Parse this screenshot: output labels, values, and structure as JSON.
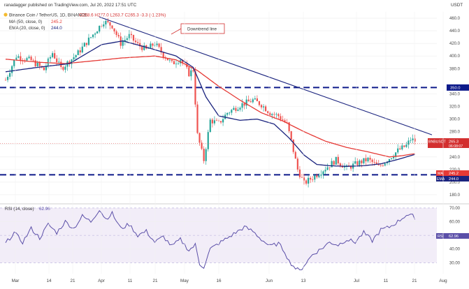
{
  "header": {
    "published": "ranadagger published on TradingView.com, Jul 20, 2022 17:51 UTC",
    "symbol": "Binance Coin / TetherUS, 1D, BINANCE",
    "ohlc": "O268.6  H277.0  L263.7  C265.3  -3.3 (-1.23%)",
    "ma_label": "MA (50, close, 0)",
    "ma_value": "245.2",
    "ema_label": "EMA (20, close, 0)",
    "ema_value": "244.0",
    "rsi_label": "RSI (14, close)",
    "rsi_value": "62.96"
  },
  "annotation": "Downtrend line",
  "colors": {
    "up": "#26a69a",
    "down": "#ef5350",
    "ma": "#e53935",
    "ema": "#1a237e",
    "trend": "#1a237e",
    "rsi": "#5b4fa8",
    "level": "#0d1a8a"
  },
  "chart_data": {
    "type": "candlestick",
    "unit": "USDT",
    "price_axis": {
      "ticks": [
        "460.0",
        "440.0",
        "420.0",
        "400.0",
        "380.0",
        "340.0",
        "320.0",
        "300.0",
        "280.0",
        "260.0",
        "240.0",
        "220.0",
        "200.0",
        "180.0"
      ],
      "ylim": [
        170,
        470
      ]
    },
    "rsi_axis": {
      "ticks": [
        "70.00",
        "60.00",
        "50.00",
        "40.00",
        "30.00"
      ],
      "ylim": [
        22,
        72
      ]
    },
    "x_ticks": [
      "Mar",
      "14",
      "21",
      "Apr",
      "11",
      "21",
      "May",
      "16",
      "Jun",
      "13",
      "Jul",
      "11",
      "21",
      "Aug"
    ],
    "horizontal_levels": [
      {
        "label": "350.0",
        "value": 350.0
      },
      {
        "label": "211.7",
        "value": 211.7
      }
    ],
    "price_badges": [
      {
        "label": "BNBUSDT",
        "value": "265.3",
        "sub": "06:08:07"
      },
      {
        "label": "MA",
        "value": "245.2"
      },
      {
        "label": "EMA",
        "value": "244.0"
      }
    ],
    "rsi_badge": {
      "label": "RSI",
      "value": "62.96"
    },
    "price_anchors": [
      [
        0,
        362
      ],
      [
        5,
        400
      ],
      [
        12,
        393
      ],
      [
        18,
        378
      ],
      [
        22,
        405
      ],
      [
        26,
        380
      ],
      [
        30,
        392
      ],
      [
        34,
        405
      ],
      [
        40,
        430
      ],
      [
        46,
        455
      ],
      [
        50,
        448
      ],
      [
        54,
        420
      ],
      [
        58,
        432
      ],
      [
        62,
        418
      ],
      [
        66,
        410
      ],
      [
        70,
        420
      ],
      [
        74,
        402
      ],
      [
        78,
        388
      ],
      [
        82,
        395
      ],
      [
        86,
        372
      ],
      [
        88,
        378
      ],
      [
        90,
        275
      ],
      [
        93,
        235
      ],
      [
        96,
        298
      ],
      [
        100,
        293
      ],
      [
        104,
        310
      ],
      [
        110,
        322
      ],
      [
        116,
        330
      ],
      [
        120,
        323
      ],
      [
        124,
        310
      ],
      [
        128,
        305
      ],
      [
        132,
        292
      ],
      [
        134,
        265
      ],
      [
        137,
        220
      ],
      [
        140,
        198
      ],
      [
        143,
        205
      ],
      [
        146,
        212
      ],
      [
        150,
        222
      ],
      [
        155,
        235
      ],
      [
        160,
        222
      ],
      [
        165,
        230
      ],
      [
        170,
        236
      ],
      [
        175,
        224
      ],
      [
        180,
        238
      ],
      [
        184,
        250
      ],
      [
        188,
        258
      ],
      [
        190,
        268
      ],
      [
        192,
        265.3
      ]
    ],
    "ma50_anchors": [
      [
        0,
        395
      ],
      [
        16,
        390
      ],
      [
        28,
        388
      ],
      [
        40,
        392
      ],
      [
        55,
        397
      ],
      [
        70,
        400
      ],
      [
        80,
        394
      ],
      [
        90,
        377
      ],
      [
        100,
        352
      ],
      [
        110,
        330
      ],
      [
        120,
        310
      ],
      [
        130,
        297
      ],
      [
        140,
        280
      ],
      [
        150,
        265
      ],
      [
        160,
        255
      ],
      [
        170,
        248
      ],
      [
        180,
        240
      ],
      [
        186,
        242
      ],
      [
        192,
        245.2
      ]
    ],
    "ema20_anchors": [
      [
        0,
        375
      ],
      [
        15,
        382
      ],
      [
        30,
        388
      ],
      [
        45,
        418
      ],
      [
        55,
        424
      ],
      [
        68,
        412
      ],
      [
        80,
        400
      ],
      [
        88,
        382
      ],
      [
        94,
        335
      ],
      [
        100,
        305
      ],
      [
        110,
        298
      ],
      [
        118,
        300
      ],
      [
        126,
        292
      ],
      [
        133,
        270
      ],
      [
        140,
        243
      ],
      [
        146,
        228
      ],
      [
        152,
        226
      ],
      [
        160,
        225
      ],
      [
        168,
        226
      ],
      [
        176,
        229
      ],
      [
        184,
        236
      ],
      [
        192,
        244.0
      ]
    ],
    "trendline": [
      [
        44,
        462
      ],
      [
        200,
        275
      ]
    ],
    "rsi_anchors": [
      [
        0,
        44
      ],
      [
        4,
        52
      ],
      [
        8,
        45
      ],
      [
        12,
        55
      ],
      [
        16,
        48
      ],
      [
        20,
        58
      ],
      [
        24,
        52
      ],
      [
        28,
        60
      ],
      [
        32,
        55
      ],
      [
        36,
        64
      ],
      [
        40,
        60
      ],
      [
        44,
        69
      ],
      [
        47,
        62
      ],
      [
        50,
        66
      ],
      [
        54,
        55
      ],
      [
        58,
        58
      ],
      [
        62,
        50
      ],
      [
        66,
        53
      ],
      [
        70,
        45
      ],
      [
        74,
        49
      ],
      [
        78,
        42
      ],
      [
        82,
        47
      ],
      [
        86,
        39
      ],
      [
        89,
        43
      ],
      [
        91,
        29
      ],
      [
        93,
        27
      ],
      [
        96,
        40
      ],
      [
        100,
        44
      ],
      [
        104,
        48
      ],
      [
        108,
        52
      ],
      [
        112,
        56
      ],
      [
        116,
        53
      ],
      [
        120,
        47
      ],
      [
        124,
        42
      ],
      [
        128,
        44
      ],
      [
        131,
        38
      ],
      [
        133,
        31
      ],
      [
        136,
        26
      ],
      [
        138,
        24
      ],
      [
        141,
        30
      ],
      [
        144,
        36
      ],
      [
        148,
        40
      ],
      [
        152,
        45
      ],
      [
        156,
        43
      ],
      [
        160,
        47
      ],
      [
        164,
        45
      ],
      [
        168,
        52
      ],
      [
        172,
        46
      ],
      [
        176,
        54
      ],
      [
        180,
        56
      ],
      [
        184,
        60
      ],
      [
        188,
        65
      ],
      [
        191,
        64
      ],
      [
        192,
        62.96
      ]
    ],
    "candle_count": 193
  }
}
